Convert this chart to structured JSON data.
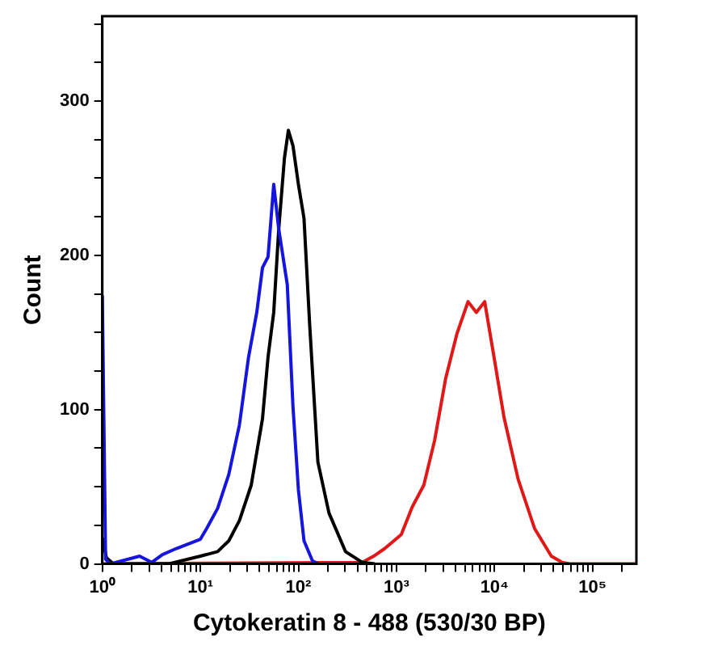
{
  "chart_data": {
    "type": "line",
    "xlabel": "Cytokeratin 8 - 488 (530/30 BP)",
    "ylabel": "Count",
    "log": "x",
    "grid": false,
    "legend": false,
    "xlim": [
      1,
      280000
    ],
    "ylim": [
      0,
      355
    ],
    "xticks": [
      {
        "value": 1,
        "label": "10⁰"
      },
      {
        "value": 2,
        "label": null
      },
      {
        "value": 3,
        "label": null
      },
      {
        "value": 4,
        "label": null
      },
      {
        "value": 5,
        "label": null
      },
      {
        "value": 6,
        "label": null
      },
      {
        "value": 7,
        "label": null
      },
      {
        "value": 8,
        "label": null
      },
      {
        "value": 9,
        "label": null
      },
      {
        "value": 10,
        "label": "10¹"
      },
      {
        "value": 20,
        "label": null
      },
      {
        "value": 30,
        "label": null
      },
      {
        "value": 40,
        "label": null
      },
      {
        "value": 50,
        "label": null
      },
      {
        "value": 60,
        "label": null
      },
      {
        "value": 70,
        "label": null
      },
      {
        "value": 80,
        "label": null
      },
      {
        "value": 90,
        "label": null
      },
      {
        "value": 100,
        "label": "10²"
      },
      {
        "value": 200,
        "label": null
      },
      {
        "value": 300,
        "label": null
      },
      {
        "value": 400,
        "label": null
      },
      {
        "value": 500,
        "label": null
      },
      {
        "value": 600,
        "label": null
      },
      {
        "value": 700,
        "label": null
      },
      {
        "value": 800,
        "label": null
      },
      {
        "value": 900,
        "label": null
      },
      {
        "value": 1000,
        "label": "10³"
      },
      {
        "value": 2000,
        "label": null
      },
      {
        "value": 3000,
        "label": null
      },
      {
        "value": 4000,
        "label": null
      },
      {
        "value": 5000,
        "label": null
      },
      {
        "value": 6000,
        "label": null
      },
      {
        "value": 7000,
        "label": null
      },
      {
        "value": 8000,
        "label": null
      },
      {
        "value": 9000,
        "label": null
      },
      {
        "value": 10000,
        "label": "10⁴"
      },
      {
        "value": 20000,
        "label": null
      },
      {
        "value": 30000,
        "label": null
      },
      {
        "value": 40000,
        "label": null
      },
      {
        "value": 50000,
        "label": null
      },
      {
        "value": 60000,
        "label": null
      },
      {
        "value": 70000,
        "label": null
      },
      {
        "value": 80000,
        "label": null
      },
      {
        "value": 90000,
        "label": null
      },
      {
        "value": 100000,
        "label": "10⁵"
      },
      {
        "value": 200000,
        "label": null
      }
    ],
    "yticks": [
      0,
      {
        "value": 25,
        "label": null
      },
      {
        "value": 50,
        "label": null
      },
      {
        "value": 75,
        "label": null
      },
      100,
      {
        "value": 125,
        "label": null
      },
      {
        "value": 150,
        "label": null
      },
      {
        "value": 175,
        "label": null
      },
      200,
      {
        "value": 225,
        "label": null
      },
      {
        "value": 250,
        "label": null
      },
      {
        "value": 275,
        "label": null
      },
      300,
      {
        "value": 325,
        "label": null
      },
      {
        "value": 350,
        "label": null
      }
    ],
    "series": [
      {
        "color": "#1515dd",
        "x": [
          1,
          1.08,
          1.2,
          2.4,
          3.2,
          4.1,
          5.7,
          10,
          11.6,
          15,
          19.5,
          25,
          31,
          37.6,
          43,
          49,
          56,
          63,
          77,
          88,
          100,
          114,
          139,
          160
        ],
        "values": [
          174,
          3,
          0,
          5,
          1,
          6,
          10,
          16,
          23,
          36,
          58,
          90,
          134,
          163,
          192,
          199,
          246,
          217,
          181,
          102,
          48,
          15,
          2,
          0
        ]
      },
      {
        "color": "#000000",
        "x": [
          1,
          1.1,
          1.3,
          4.7,
          10,
          15,
          19.5,
          25,
          33,
          43,
          49,
          56,
          63,
          72,
          79,
          88,
          100,
          114,
          130,
          158,
          205,
          302,
          447,
          600
        ],
        "values": [
          17,
          4,
          0,
          0,
          5,
          8,
          15,
          28,
          51,
          94,
          134,
          163,
          217,
          263,
          281,
          271,
          246,
          224,
          156,
          66,
          33,
          8,
          1,
          0
        ]
      },
      {
        "color": "#e01818",
        "x": [
          1,
          447,
          585,
          760,
          1120,
          1450,
          1900,
          2450,
          3170,
          4130,
          5370,
          6530,
          7940,
          9650,
          12500,
          17400,
          25600,
          38000,
          49000,
          60000,
          280000
        ],
        "values": [
          0,
          1,
          5,
          10,
          19,
          37,
          51,
          80,
          120,
          149,
          170,
          163,
          170,
          138,
          95,
          55,
          23,
          5,
          1,
          0,
          0
        ]
      }
    ]
  }
}
